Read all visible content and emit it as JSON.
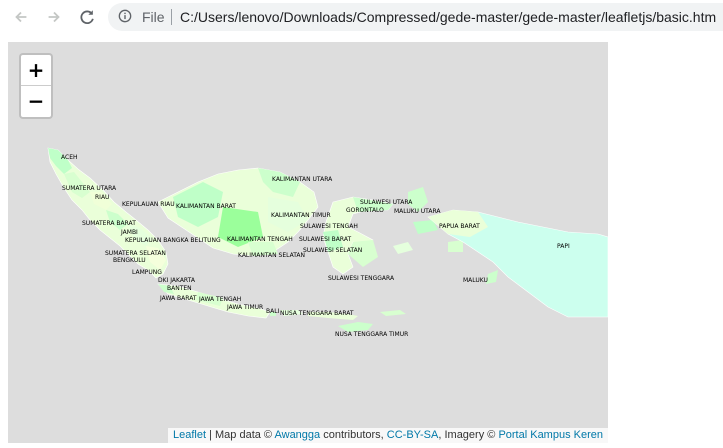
{
  "browser": {
    "file_label": "File",
    "url": "C:/Users/lenovo/Downloads/Compressed/gede-master/gede-master/leafletjs/basic.htm"
  },
  "map": {
    "zoom_in_label": "+",
    "zoom_out_label": "−",
    "attribution": {
      "leaflet": "Leaflet",
      "sep1": " | Map data © ",
      "awangga": "Awangga",
      "contributors": " contributors, ",
      "license": "CC-BY-SA",
      "imagery": ", Imagery © ",
      "portal": "Portal Kampus Keren"
    },
    "region_labels": [
      "ACEH",
      "SUMATERA UTARA",
      "RIAU",
      "KEPULAUAN RIAU",
      "KALIMANTAN BARAT",
      "KALIMANTAN UTARA",
      "SULAWESI UTARA",
      "GORONTALO",
      "MALUKU UTARA",
      "KALIMANTAN TIMUR",
      "SUMATERA BARAT",
      "JAMBI",
      "KEPULAUAN BANGKA BELITUNG",
      "KALIMANTAN TENGAH",
      "SULAWESI TENGAH",
      "SULAWESI BARAT",
      "PAPUA BARAT",
      "SUMATERA SELATAN",
      "BENGKULU",
      "KALIMANTAN SELATAN",
      "SULAWESI SELATAN",
      "LAMPUNG",
      "DKI JAKARTA",
      "BANTEN",
      "SULAWESI TENGGARA",
      "MALUKU",
      "JAWA BARAT",
      "JAWA TENGAH",
      "JAWA TIMUR",
      "BALI",
      "NUSA TENGGARA BARAT",
      "NUSA TENGGARA TIMUR",
      "PAPI"
    ]
  }
}
